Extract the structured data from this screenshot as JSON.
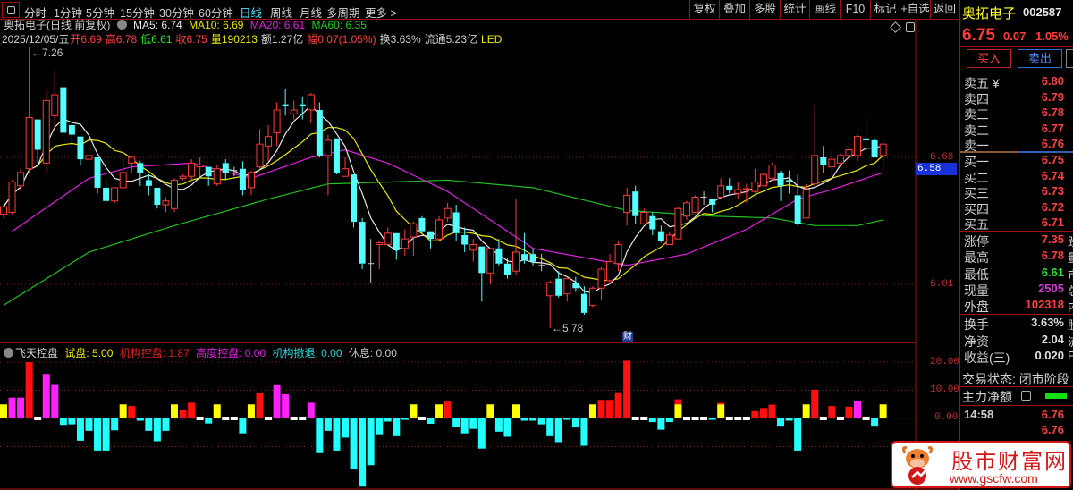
{
  "toolbar": {
    "tabs": [
      "分时",
      "1分钟",
      "5分钟",
      "15分钟",
      "30分钟",
      "60分钟",
      "日线",
      "周线",
      "月线",
      "多周期",
      "更多 >"
    ],
    "active": "日线",
    "buttons": [
      "复权",
      "叠加",
      "多股",
      "统计",
      "画线",
      "F10",
      "标记",
      "+自选",
      "返回"
    ]
  },
  "header": {
    "title": "奥拓电子(日线 前复权)",
    "ma5": "MA5: 6.74",
    "ma10": "MA10: 6.69",
    "ma20": "MA20: 6.61",
    "ma60": "MA60: 6.35",
    "date": "2025/12/05/五",
    "open": "开6.69",
    "high": "高6.78",
    "low": "低6.61",
    "close": "收6.75",
    "vol": "量190213",
    "amount": "额1.27亿",
    "range": "幅0.07(1.05%)",
    "turnover": "换3.63%",
    "float": "流通5.23亿",
    "sector": "LED"
  },
  "colors": {
    "up": "#ff3b3b",
    "down": "#54ffff",
    "ma5": "#e8e8e8",
    "ma10": "#e8e800",
    "ma20": "#e020e0",
    "ma60": "#20c020",
    "trial": "#ffff00",
    "inst": "#ff1010",
    "high": "#ff20ff",
    "exit": "#22ffff",
    "rest": "#ffffff"
  },
  "chart_data": {
    "type": "candlestick",
    "candles_ohlc": [
      [
        6.38,
        6.43,
        6.36,
        6.42
      ],
      [
        6.39,
        6.56,
        6.38,
        6.55
      ],
      [
        6.53,
        6.62,
        6.51,
        6.6
      ],
      [
        6.62,
        7.26,
        6.6,
        6.89
      ],
      [
        6.88,
        6.88,
        6.65,
        6.72
      ],
      [
        6.65,
        7.03,
        6.6,
        6.98
      ],
      [
        6.9,
        7.14,
        6.82,
        7.01
      ],
      [
        7.05,
        7.05,
        6.81,
        6.81
      ],
      [
        6.85,
        6.85,
        6.73,
        6.8
      ],
      [
        6.79,
        6.79,
        6.64,
        6.67
      ],
      [
        6.67,
        6.7,
        6.64,
        6.69
      ],
      [
        6.68,
        6.68,
        6.49,
        6.52
      ],
      [
        6.52,
        6.57,
        6.44,
        6.45
      ],
      [
        6.45,
        6.52,
        6.44,
        6.52
      ],
      [
        6.52,
        6.67,
        6.52,
        6.6
      ],
      [
        6.65,
        6.68,
        6.6,
        6.68
      ],
      [
        6.65,
        6.66,
        6.53,
        6.6
      ],
      [
        6.56,
        6.59,
        6.48,
        6.53
      ],
      [
        6.52,
        6.52,
        6.41,
        6.43
      ],
      [
        6.43,
        6.47,
        6.39,
        6.45
      ],
      [
        6.41,
        6.57,
        6.39,
        6.56
      ],
      [
        6.57,
        6.59,
        6.56,
        6.58
      ],
      [
        6.58,
        6.67,
        6.55,
        6.65
      ],
      [
        6.63,
        6.68,
        6.58,
        6.64
      ],
      [
        6.63,
        6.63,
        6.53,
        6.58
      ],
      [
        6.54,
        6.64,
        6.53,
        6.62
      ],
      [
        6.65,
        6.67,
        6.56,
        6.6
      ],
      [
        6.61,
        6.63,
        6.58,
        6.61
      ],
      [
        6.62,
        6.66,
        6.48,
        6.51
      ],
      [
        6.52,
        6.61,
        6.48,
        6.6
      ],
      [
        6.63,
        6.83,
        6.62,
        6.75
      ],
      [
        6.74,
        6.85,
        6.66,
        6.79
      ],
      [
        6.81,
        6.97,
        6.74,
        6.93
      ],
      [
        6.96,
        7.04,
        6.9,
        6.95
      ],
      [
        6.91,
        6.98,
        6.88,
        6.93
      ],
      [
        6.96,
        7.0,
        6.88,
        6.95
      ],
      [
        6.93,
        7.02,
        6.86,
        7.01
      ],
      [
        6.93,
        6.97,
        6.68,
        6.69
      ],
      [
        6.69,
        6.8,
        6.48,
        6.77
      ],
      [
        6.78,
        6.78,
        6.59,
        6.6
      ],
      [
        6.58,
        6.68,
        6.58,
        6.62
      ],
      [
        6.59,
        6.59,
        6.31,
        6.34
      ],
      [
        6.34,
        6.36,
        6.09,
        6.12
      ],
      [
        6.12,
        6.25,
        6.02,
        6.12
      ],
      [
        6.22,
        6.24,
        6.09,
        6.23
      ],
      [
        6.22,
        6.31,
        6.22,
        6.28
      ],
      [
        6.28,
        6.28,
        6.14,
        6.19
      ],
      [
        6.2,
        6.3,
        6.16,
        6.25
      ],
      [
        6.26,
        6.34,
        6.16,
        6.33
      ],
      [
        6.36,
        6.37,
        6.28,
        6.29
      ],
      [
        6.29,
        6.29,
        6.2,
        6.25
      ],
      [
        6.25,
        6.37,
        6.24,
        6.35
      ],
      [
        6.36,
        6.44,
        6.34,
        6.41
      ],
      [
        6.39,
        6.43,
        6.24,
        6.28
      ],
      [
        6.27,
        6.31,
        6.18,
        6.22
      ],
      [
        6.19,
        6.25,
        6.13,
        6.22
      ],
      [
        6.21,
        6.21,
        5.92,
        6.07
      ],
      [
        6.07,
        6.2,
        6.01,
        6.2
      ],
      [
        6.2,
        6.25,
        6.11,
        6.12
      ],
      [
        6.12,
        6.15,
        6.04,
        6.06
      ],
      [
        6.08,
        6.46,
        6.06,
        6.18
      ],
      [
        6.17,
        6.28,
        6.12,
        6.14
      ],
      [
        6.17,
        6.2,
        6.11,
        6.13
      ],
      [
        6.11,
        6.17,
        6.08,
        6.11
      ],
      [
        5.95,
        6.03,
        5.78,
        6.02
      ],
      [
        6.04,
        6.08,
        5.94,
        5.95
      ],
      [
        5.96,
        6.04,
        5.92,
        6.04
      ],
      [
        6.02,
        6.05,
        5.97,
        5.99
      ],
      [
        5.96,
        6.0,
        5.85,
        5.86
      ],
      [
        5.9,
        6.0,
        5.89,
        5.99
      ],
      [
        5.99,
        6.1,
        5.93,
        6.09
      ],
      [
        6.03,
        6.17,
        6.01,
        6.13
      ],
      [
        6.12,
        6.24,
        6.08,
        6.22
      ],
      [
        6.39,
        6.52,
        6.32,
        6.48
      ],
      [
        6.5,
        6.53,
        6.33,
        6.37
      ],
      [
        6.33,
        6.41,
        6.33,
        6.39
      ],
      [
        6.37,
        6.39,
        6.27,
        6.3
      ],
      [
        6.29,
        6.32,
        6.23,
        6.24
      ],
      [
        6.22,
        6.29,
        6.22,
        6.27
      ],
      [
        6.25,
        6.42,
        6.25,
        6.41
      ],
      [
        6.37,
        6.45,
        6.35,
        6.44
      ],
      [
        6.39,
        6.48,
        6.39,
        6.47
      ],
      [
        6.47,
        6.5,
        6.43,
        6.47
      ],
      [
        6.46,
        6.46,
        6.39,
        6.43
      ],
      [
        6.47,
        6.57,
        6.46,
        6.53
      ],
      [
        6.53,
        6.57,
        6.49,
        6.51
      ],
      [
        6.49,
        6.55,
        6.46,
        6.51
      ],
      [
        6.51,
        6.54,
        6.44,
        6.515
      ],
      [
        6.5,
        6.62,
        6.49,
        6.55
      ],
      [
        6.53,
        6.6,
        6.53,
        6.59
      ],
      [
        6.57,
        6.65,
        6.56,
        6.64
      ],
      [
        6.6,
        6.61,
        6.45,
        6.53
      ],
      [
        6.56,
        6.61,
        6.49,
        6.55
      ],
      [
        6.48,
        6.59,
        6.32,
        6.33
      ],
      [
        6.36,
        6.54,
        6.36,
        6.51
      ],
      [
        6.54,
        6.96,
        6.53,
        6.69
      ],
      [
        6.68,
        6.74,
        6.6,
        6.64
      ],
      [
        6.63,
        6.72,
        6.58,
        6.67
      ],
      [
        6.65,
        6.7,
        6.64,
        6.69
      ],
      [
        6.69,
        6.79,
        6.51,
        6.72
      ],
      [
        6.69,
        6.8,
        6.66,
        6.79
      ],
      [
        6.78,
        6.91,
        6.72,
        6.77
      ],
      [
        6.77,
        6.78,
        6.68,
        6.68
      ],
      [
        6.69,
        6.78,
        6.61,
        6.75
      ]
    ],
    "ma20_samples": [
      [
        1,
        6.29
      ],
      [
        10,
        6.57
      ],
      [
        15,
        6.63
      ],
      [
        22,
        6.65
      ],
      [
        29,
        6.57
      ],
      [
        36,
        6.68
      ],
      [
        40,
        6.72
      ],
      [
        45,
        6.65
      ],
      [
        52,
        6.5
      ],
      [
        62,
        6.2
      ],
      [
        73,
        6.11
      ],
      [
        80,
        6.17
      ],
      [
        87,
        6.3
      ],
      [
        93,
        6.46
      ],
      [
        97,
        6.51
      ],
      [
        103,
        6.6
      ]
    ],
    "ma60_samples": [
      [
        0,
        5.9
      ],
      [
        10,
        6.18
      ],
      [
        20,
        6.32
      ],
      [
        31,
        6.46
      ],
      [
        38,
        6.54
      ],
      [
        52,
        6.56
      ],
      [
        62,
        6.52
      ],
      [
        73,
        6.4
      ],
      [
        83,
        6.37
      ],
      [
        90,
        6.36
      ],
      [
        95,
        6.32
      ],
      [
        100,
        6.32
      ],
      [
        103,
        6.35
      ]
    ],
    "price_ticks": [
      "6.68",
      "6.01"
    ],
    "price_tick_values": [
      6.68,
      6.01
    ],
    "cursor_price": "6.58",
    "high_mark": "7.26",
    "low_mark": "5.78",
    "high_index": 3,
    "low_index": 64,
    "event_badge": "财",
    "event_index": 73,
    "indicator": {
      "title": "飞天控盘",
      "legend": [
        {
          "label": "试盘: 5.00",
          "key": "trial"
        },
        {
          "label": "机构控盘: 1.87",
          "key": "inst"
        },
        {
          "label": "高度控盘: 0.00",
          "key": "high"
        },
        {
          "label": "机构撤退: 0.00",
          "key": "exit"
        },
        {
          "label": "休息: 0.00",
          "key": "rest"
        }
      ],
      "ticks": [
        "20.00",
        "10.00",
        "0.00"
      ],
      "tick_values": [
        20,
        10,
        0
      ],
      "bars": [
        [
          "trial",
          5
        ],
        [
          "high",
          7.4
        ],
        [
          "high",
          7.4
        ],
        [
          "inst",
          20
        ],
        [
          "rest",
          0
        ],
        [
          "high",
          15.8
        ],
        [
          "high",
          11.9
        ],
        [
          "exit",
          -2.3
        ],
        [
          "exit",
          -2.1
        ],
        [
          "exit",
          -7.9
        ],
        [
          "exit",
          -4.4
        ],
        [
          "exit",
          -11.4
        ],
        [
          "exit",
          -11.4
        ],
        [
          "exit",
          -4.2
        ],
        [
          "trial",
          5
        ],
        [
          "inst",
          4.4
        ],
        [
          "exit",
          -0.8
        ],
        [
          "exit",
          -4.4
        ],
        [
          "exit",
          -8.1
        ],
        [
          "exit",
          -4.4
        ],
        [
          "trial",
          5
        ],
        [
          "inst",
          2.9
        ],
        [
          "inst",
          5.6
        ],
        [
          "rest",
          0
        ],
        [
          "exit",
          -1.8
        ],
        [
          "trial",
          5
        ],
        [
          "rest",
          0
        ],
        [
          "rest",
          0
        ],
        [
          "exit",
          -5.3
        ],
        [
          "trial",
          5
        ],
        [
          "inst",
          8.9
        ],
        [
          "rest",
          0
        ],
        [
          "high",
          11.8
        ],
        [
          "high",
          8.6
        ],
        [
          "rest",
          0
        ],
        [
          "rest",
          0
        ],
        [
          "high",
          5.6
        ],
        [
          "exit",
          -12.3
        ],
        [
          "exit",
          -4.4
        ],
        [
          "exit",
          -11.4
        ],
        [
          "exit",
          -6.8
        ],
        [
          "exit",
          -18.1
        ],
        [
          "exit",
          -24.2
        ],
        [
          "exit",
          -16.6
        ],
        [
          "exit",
          -5.6
        ],
        [
          "exit",
          -1.1
        ],
        [
          "exit",
          -6.3
        ],
        [
          "exit",
          -0.5
        ],
        [
          "trial",
          5
        ],
        [
          "rest",
          0
        ],
        [
          "exit",
          -1.9
        ],
        [
          "trial",
          5
        ],
        [
          "inst",
          6.0
        ],
        [
          "exit",
          -3.2
        ],
        [
          "exit",
          -5.3
        ],
        [
          "exit",
          -3.7
        ],
        [
          "exit",
          -10.7
        ],
        [
          "trial",
          5
        ],
        [
          "exit",
          -4.7
        ],
        [
          "exit",
          -6.5
        ],
        [
          "trial",
          5
        ],
        [
          "exit",
          -0.8
        ],
        [
          "exit",
          -0.8
        ],
        [
          "exit",
          -2.1
        ],
        [
          "exit",
          -6.3
        ],
        [
          "exit",
          -8.4
        ],
        [
          "exit",
          -0.5
        ],
        [
          "exit",
          -3.2
        ],
        [
          "exit",
          -9.7
        ],
        [
          "trial",
          5
        ],
        [
          "inst",
          6.6
        ],
        [
          "inst",
          6.6
        ],
        [
          "inst",
          9.3
        ],
        [
          "inst",
          20.5
        ],
        [
          "rest",
          0
        ],
        [
          "rest",
          0
        ],
        [
          "exit",
          -1.3
        ],
        [
          "exit",
          -4
        ],
        [
          "exit",
          -1.3
        ],
        [
          "trial+inst",
          6.8
        ],
        [
          "rest",
          0
        ],
        [
          "rest",
          0
        ],
        [
          "rest",
          0
        ],
        [
          "exit",
          -0.5
        ],
        [
          "trial+inst",
          5.6
        ],
        [
          "rest",
          0
        ],
        [
          "rest",
          0
        ],
        [
          "rest",
          0
        ],
        [
          "inst",
          2.6
        ],
        [
          "inst",
          3.7
        ],
        [
          "inst",
          4.9
        ],
        [
          "exit",
          -2.6
        ],
        [
          "exit",
          -0.8
        ],
        [
          "exit",
          -11.4
        ],
        [
          "trial",
          5
        ],
        [
          "inst",
          10.2
        ],
        [
          "rest",
          0
        ],
        [
          "inst",
          4.4
        ],
        [
          "rest",
          0
        ],
        [
          "inst",
          4.2
        ],
        [
          "high",
          6.1
        ],
        [
          "rest",
          0
        ],
        [
          "exit",
          -2.6
        ],
        [
          "trial",
          5
        ]
      ]
    }
  },
  "panel": {
    "name": "奥拓电子",
    "code": "002587",
    "price": "6.75",
    "change": "0.07",
    "pct": "1.05%",
    "buy": "买入",
    "sell": "卖出",
    "asks": [
      {
        "k": "卖五 ¥",
        "v": "6.80"
      },
      {
        "k": "卖四",
        "v": "6.79"
      },
      {
        "k": "卖三",
        "v": "6.78"
      },
      {
        "k": "卖二",
        "v": "6.77"
      },
      {
        "k": "卖一",
        "v": "6.76"
      }
    ],
    "bids": [
      {
        "k": "买一",
        "v": "6.75"
      },
      {
        "k": "买二",
        "v": "6.74"
      },
      {
        "k": "买三",
        "v": "6.73"
      },
      {
        "k": "买四",
        "v": "6.72"
      },
      {
        "k": "买五",
        "v": "6.71"
      }
    ],
    "stats": [
      {
        "k": "涨停",
        "v": "7.35",
        "x": "跌",
        "c": "#ff4040"
      },
      {
        "k": "最高",
        "v": "6.78",
        "x": "量",
        "c": "#ff4040"
      },
      {
        "k": "最低",
        "v": "6.61",
        "x": "市",
        "c": "#30e030"
      },
      {
        "k": "现量",
        "v": "2505",
        "x": "总",
        "c": "#d040d0"
      },
      {
        "k": "外盘",
        "v": "102318",
        "x": "内",
        "c": "#ff4040"
      }
    ],
    "fin": [
      {
        "k": "换手",
        "v": "3.63%",
        "x": "股"
      },
      {
        "k": "净资",
        "v": "2.04",
        "x": "流"
      },
      {
        "k": "收益(三)",
        "v": "0.020",
        "x": "PE"
      }
    ],
    "status": "交易状态: 闭市阶段",
    "mainflow": "主力净额",
    "ticks": [
      {
        "t": "14:58",
        "v": "6.76"
      },
      {
        "t": "",
        "v": "6.76"
      }
    ]
  },
  "watermark": {
    "name": "股市财富网",
    "url": "www.gscfw.com"
  }
}
